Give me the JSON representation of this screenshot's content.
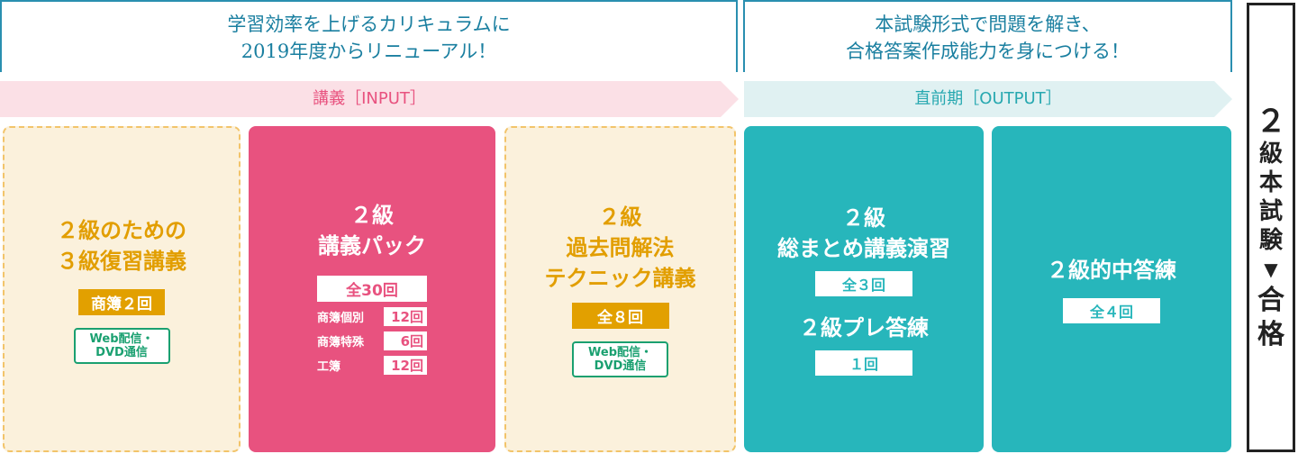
{
  "header": {
    "left": [
      "学習効率を上げるカリキュラムに",
      "2019年度からリニューアル！"
    ],
    "right": [
      "本試験形式で問題を解き、",
      "合格答案作成能力を身につける！"
    ]
  },
  "bands": {
    "input": "講義［INPUT］",
    "output": "直前期［OUTPUT］"
  },
  "cards": [
    {
      "title": [
        "２級のための",
        "３級復習講義"
      ],
      "tag": "商簿２回",
      "delivery": [
        "Web配信・",
        "DVD通信"
      ]
    },
    {
      "title": [
        "２級",
        "講義パック"
      ],
      "total": "全30回",
      "rows": [
        {
          "label": "商簿個別",
          "count": "12回"
        },
        {
          "label": "商簿特殊",
          "count": "6回"
        },
        {
          "label": "工簿",
          "count": "12回"
        }
      ]
    },
    {
      "title": [
        "２級",
        "過去問解法",
        "テクニック講義"
      ],
      "tag": "全８回",
      "delivery": [
        "Web配信・",
        "DVD通信"
      ]
    },
    {
      "title": [
        "２級",
        "総まとめ講義演習"
      ],
      "tag": "全３回",
      "title2": "２級プレ答練",
      "tag2": "１回"
    },
    {
      "title": [
        "２級的中答練"
      ],
      "tag": "全４回"
    }
  ],
  "goal": [
    "２",
    "級",
    "本",
    "試",
    "験",
    "▼",
    "合",
    "格"
  ],
  "colors": {
    "teal_text": "#1a7fa0",
    "pink": "#e8527f",
    "gold": "#e2a000",
    "green": "#1aa070",
    "teal": "#27b6bb"
  }
}
